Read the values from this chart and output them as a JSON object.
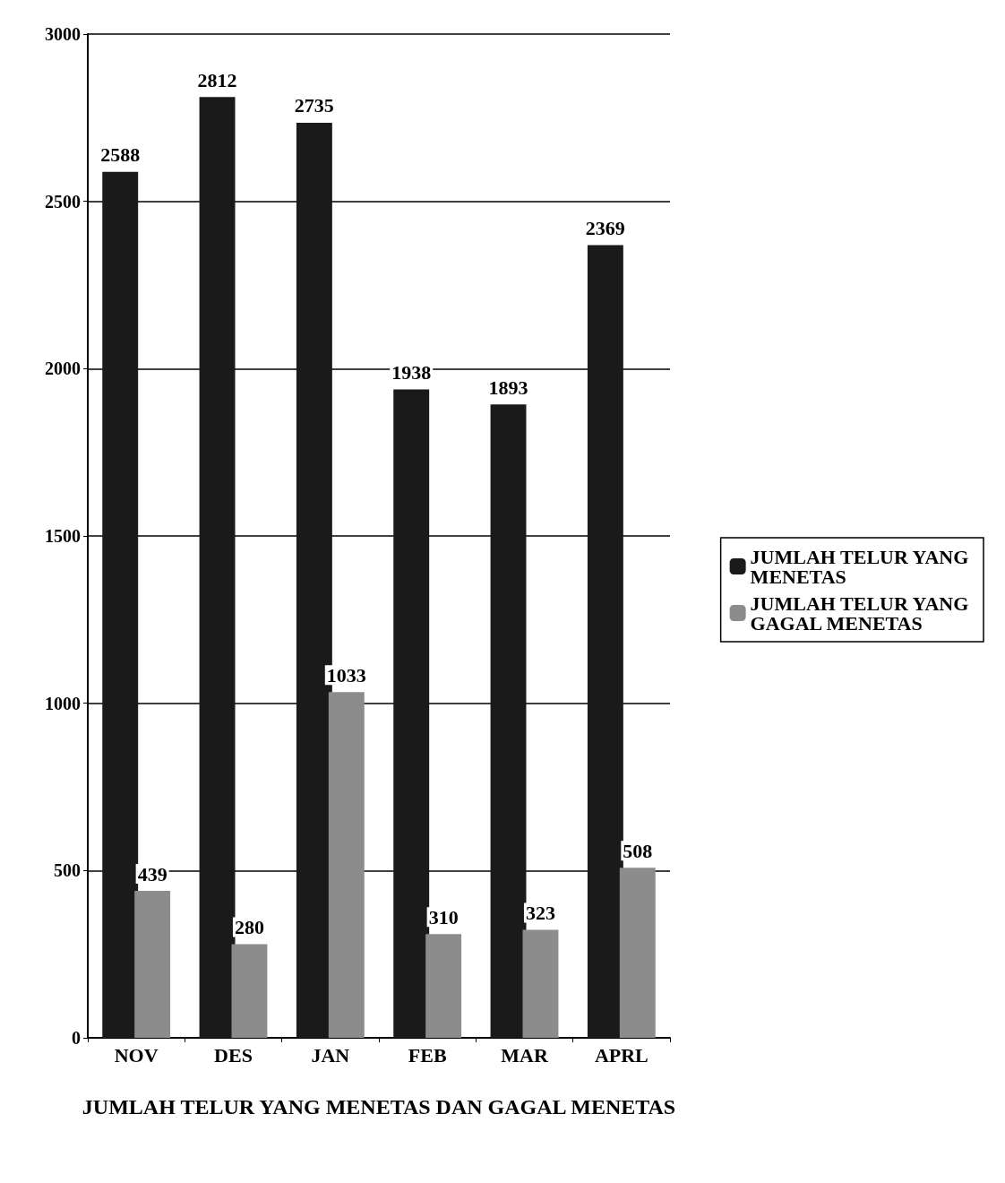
{
  "chart_data": {
    "type": "bar",
    "xlabel": "JUMLAH TELUR YANG MENETAS DAN GAGAL MENETAS",
    "categories": [
      "NOV",
      "DES",
      "JAN",
      "FEB",
      "MAR",
      "APRL"
    ],
    "series": [
      {
        "name": "JUMLAH TELUR YANG MENETAS",
        "color": "#1a1a1a",
        "values": [
          2588,
          2812,
          2735,
          1938,
          1893,
          2369
        ]
      },
      {
        "name": "JUMLAH TELUR YANG GAGAL MENETAS",
        "color": "#8c8c8c",
        "values": [
          439,
          280,
          1033,
          310,
          323,
          508
        ]
      }
    ],
    "ylim": [
      0,
      3000
    ],
    "yticks": [
      0,
      500,
      1000,
      1500,
      2000,
      2500,
      3000
    ],
    "grid": "y",
    "legend": "right",
    "data_labels": true
  }
}
